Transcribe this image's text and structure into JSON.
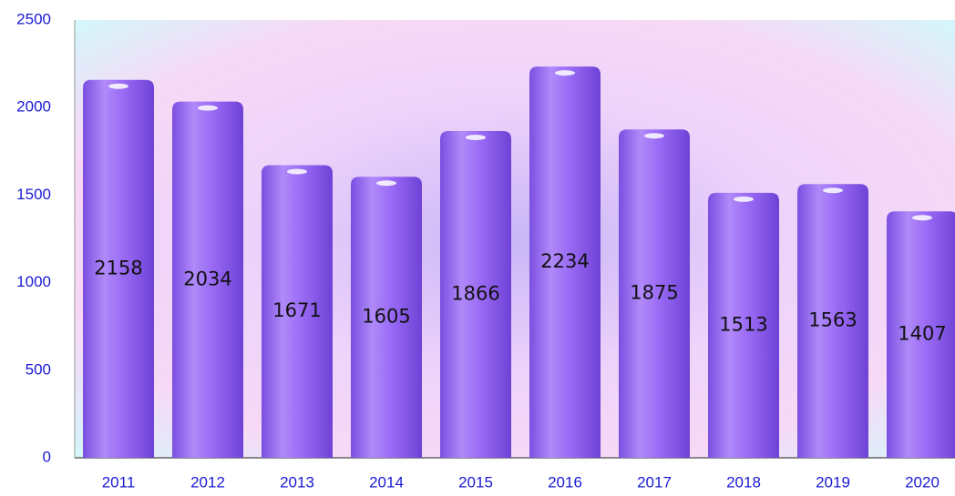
{
  "chart_data": {
    "type": "bar",
    "categories": [
      "2011",
      "2012",
      "2013",
      "2014",
      "2015",
      "2016",
      "2017",
      "2018",
      "2019",
      "2020"
    ],
    "values": [
      2158,
      2034,
      1671,
      1605,
      1866,
      2234,
      1875,
      1513,
      1563,
      1407
    ],
    "color": "#9b6cf5",
    "ylim": [
      0,
      2500
    ],
    "yticks": [
      0,
      500,
      1000,
      1500,
      2000,
      2500
    ],
    "grid": false
  }
}
